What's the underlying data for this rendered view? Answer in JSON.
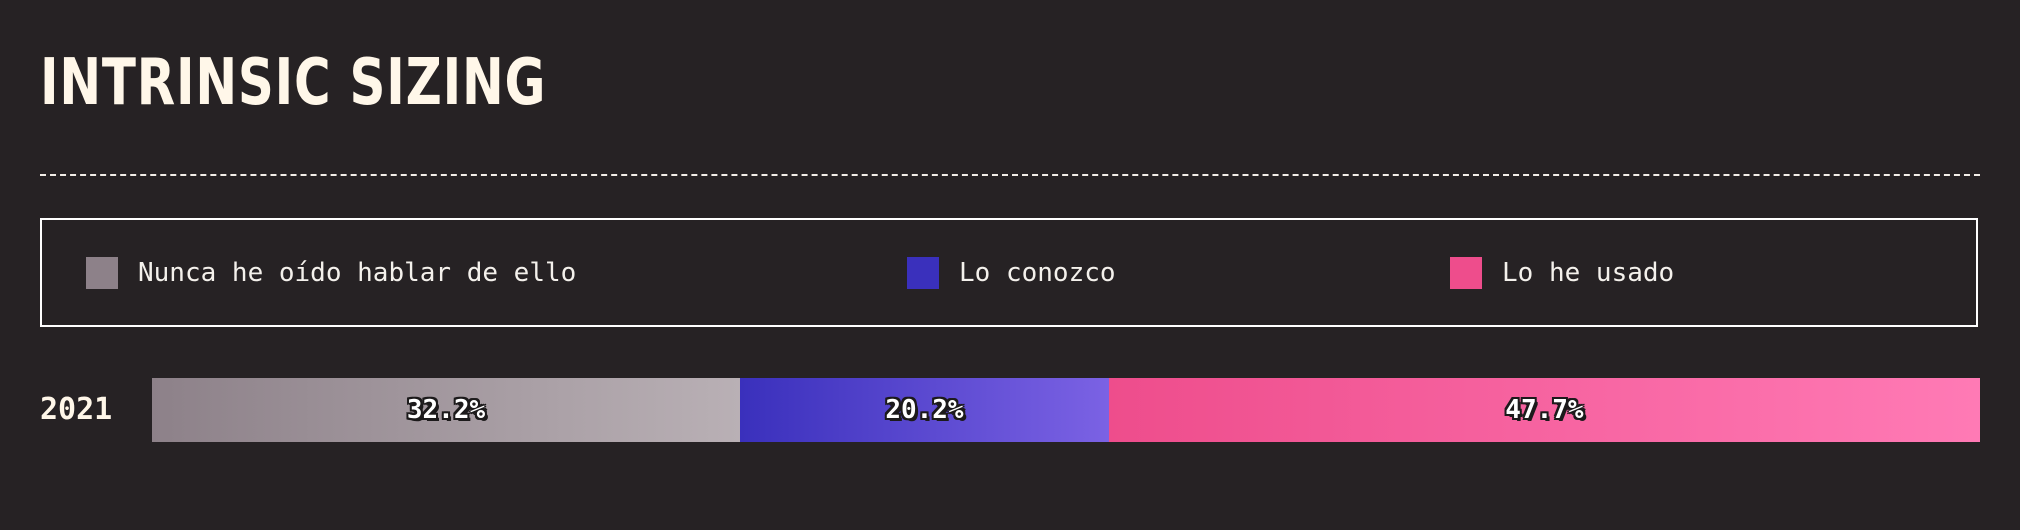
{
  "chart_data": {
    "type": "bar",
    "orientation": "horizontal-stacked-100",
    "title": "INTRINSIC SIZING",
    "categories": [
      "2021"
    ],
    "series": [
      {
        "name": "Nunca he oído hablar de ello",
        "values": [
          32.2
        ],
        "label": "32.2%",
        "color_start": "#8d8189",
        "color_end": "#b9b0b5"
      },
      {
        "name": "Lo conozco",
        "values": [
          20.2
        ],
        "label": "20.2%",
        "color_start": "#3a30bc",
        "color_end": "#7b62e4"
      },
      {
        "name": "Lo he usado",
        "values": [
          47.7
        ],
        "label": "47.7%",
        "color_start": "#ee4d8c",
        "color_end": "#ff7ab5"
      }
    ],
    "legend_position": "top",
    "grid": false
  }
}
